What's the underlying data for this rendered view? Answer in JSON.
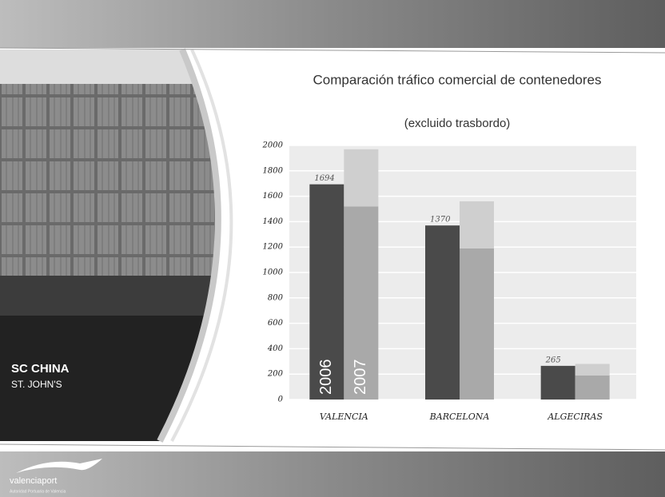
{
  "chart_data": {
    "type": "bar",
    "title": "Comparación tráfico comercial de contenedores",
    "subtitle": "(excluido trasbordo)",
    "categories": [
      "VALENCIA",
      "BARCELONA",
      "ALGECIRAS"
    ],
    "series": [
      {
        "name": "2006",
        "color": "#4a4a4a",
        "values": [
          1694,
          1370,
          265
        ]
      },
      {
        "name": "2007",
        "color": "#a9a9a9",
        "values": [
          1520,
          1190,
          190
        ],
        "upper": {
          "color": "#cfcfcf",
          "values": [
            450,
            370,
            90
          ]
        }
      }
    ],
    "ylim": [
      0,
      2000
    ],
    "yticks": [
      0,
      200,
      400,
      600,
      800,
      1000,
      1200,
      1400,
      1600,
      1800,
      2000
    ],
    "grid": true
  },
  "photo": {
    "lines": [
      "SC CHINA",
      "ST. JOHN'S"
    ]
  },
  "footer": {
    "logo": "valenciaport",
    "tagline": "Autoridad Portuaria de Valencia"
  }
}
